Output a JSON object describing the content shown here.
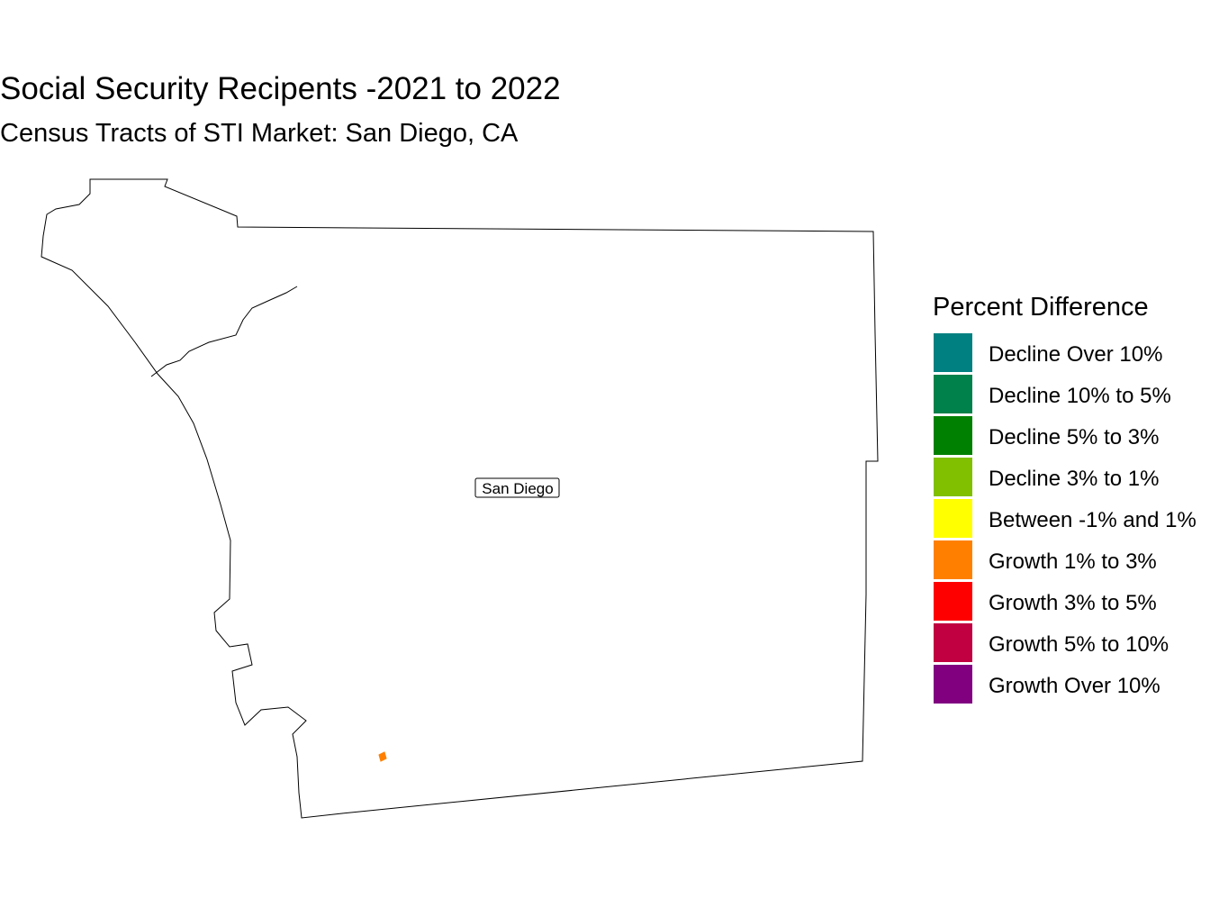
{
  "title": "Social Security Recipents -2021 to 2022",
  "subtitle": "Census Tracts of STI Market: San Diego, CA",
  "map": {
    "label": "San Diego"
  },
  "legend": {
    "title": "Percent Difference",
    "items": [
      {
        "label": "Decline Over 10%",
        "color": "#008080"
      },
      {
        "label": "Decline 10% to 5%",
        "color": "#00804a"
      },
      {
        "label": "Decline 5% to 3%",
        "color": "#008000"
      },
      {
        "label": "Decline 3% to 1%",
        "color": "#80c000"
      },
      {
        "label": "Between -1% and 1%",
        "color": "#ffff00"
      },
      {
        "label": "Growth 1% to 3%",
        "color": "#ff8000"
      },
      {
        "label": "Growth 3% to 5%",
        "color": "#ff0000"
      },
      {
        "label": "Growth 5% to 10%",
        "color": "#c00040"
      },
      {
        "label": "Growth Over 10%",
        "color": "#800080"
      }
    ]
  }
}
